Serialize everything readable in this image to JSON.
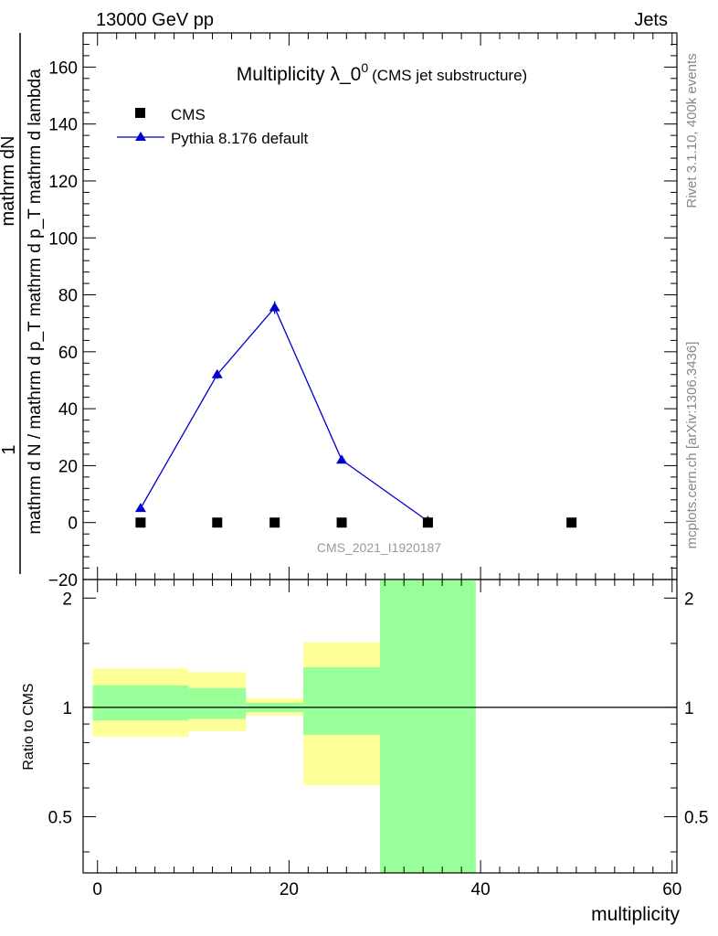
{
  "header": {
    "left": "13000 GeV pp",
    "right": "Jets"
  },
  "side_labels": {
    "rivet": "Rivet 3.1.10,  400k events",
    "mcplots": "mcplots.cern.ch [arXiv:1306.3436]"
  },
  "watermark": "CMS_2021_I1920187",
  "chart_data": [
    {
      "type": "line",
      "title_main": "Multiplicity λ_0",
      "title_sup": "0",
      "title_note": "(CMS jet substructure)",
      "ylabel_numerator": "mathrm dN",
      "ylabel_denominator": "mathrm d N / mathrm d p_T mathrm d p_T mathrm d lambda",
      "ylabel_fraction_numerator": "1",
      "xlim": [
        -1.5,
        60.5
      ],
      "ylim": [
        -20,
        172
      ],
      "yticks": [
        -20,
        0,
        20,
        40,
        60,
        80,
        100,
        120,
        140,
        160
      ],
      "legend": {
        "placement": "top-left",
        "entries": [
          "CMS",
          "Pythia 8.176 default"
        ]
      },
      "series": [
        {
          "name": "CMS",
          "marker": "square",
          "color": "#000000",
          "x": [
            4.5,
            12.5,
            18.5,
            25.5,
            34.5,
            49.5
          ],
          "y": [
            0,
            0,
            0,
            0,
            0,
            0
          ]
        },
        {
          "name": "Pythia 8.176 default",
          "marker": "triangle",
          "color": "#0000cc",
          "x": [
            4.5,
            12.5,
            18.5,
            25.5,
            34.5
          ],
          "y": [
            5,
            52,
            75.5,
            22,
            0.5
          ],
          "yerr": [
            0.4,
            1.5,
            2.2,
            0.8,
            0.2
          ]
        }
      ]
    },
    {
      "type": "area",
      "ylabel": "Ratio to CMS",
      "xlabel": "multiplicity",
      "xlim": [
        -1.5,
        60.5
      ],
      "ylim": [
        0.35,
        2.25
      ],
      "yticks": [
        0.5,
        1,
        2
      ],
      "ytick_labels": [
        "0.5",
        "1",
        "2"
      ],
      "xticks": [
        0,
        20,
        40,
        60
      ],
      "reference_line": 1,
      "bands": [
        {
          "x0": -0.5,
          "x1": 9.5,
          "yellow": [
            0.83,
            1.28
          ],
          "green": [
            0.92,
            1.15
          ]
        },
        {
          "x0": 9.5,
          "x1": 15.5,
          "yellow": [
            0.86,
            1.25
          ],
          "green": [
            0.93,
            1.13
          ]
        },
        {
          "x0": 15.5,
          "x1": 21.5,
          "yellow": [
            0.95,
            1.06
          ],
          "green": [
            0.97,
            1.03
          ]
        },
        {
          "x0": 21.5,
          "x1": 29.5,
          "yellow": [
            0.61,
            1.51
          ],
          "green": [
            0.84,
            1.29
          ]
        },
        {
          "x0": 29.5,
          "x1": 39.5,
          "yellow": [
            0.35,
            2.25
          ],
          "green": [
            0.35,
            2.25
          ]
        }
      ],
      "colors": {
        "yellow": "#ffff99",
        "green": "#99ff99"
      }
    }
  ]
}
